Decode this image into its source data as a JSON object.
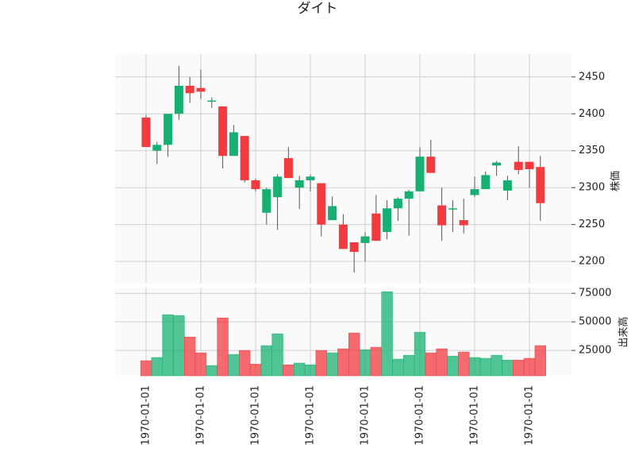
{
  "chart_data": {
    "type": "candlestick",
    "title": "ダイト",
    "ylabel": "株価",
    "categories": [
      "1970-01-01",
      null,
      null,
      null,
      null,
      "1970-01-01",
      null,
      null,
      null,
      null,
      "1970-01-01",
      null,
      null,
      null,
      null,
      "1970-01-01",
      null,
      null,
      null,
      null,
      "1970-01-01",
      null,
      null,
      null,
      null,
      "1970-01-01",
      null,
      null,
      null,
      null,
      "1970-01-01",
      null,
      null,
      null,
      null,
      "1970-01-01",
      null
    ],
    "open": [
      2395,
      2350,
      2358,
      2400,
      2438,
      2435,
      2418,
      2410,
      2343,
      2370,
      2310,
      2266,
      2287,
      2340,
      2300,
      2310,
      2306,
      2256,
      2250,
      2226,
      2225,
      2265,
      2240,
      2272,
      2285,
      2295,
      2342,
      2276,
      2272,
      2256,
      2290,
      2298,
      2330,
      2296,
      2335,
      2335,
      2328
    ],
    "high": [
      2398,
      2362,
      2400,
      2465,
      2450,
      2460,
      2422,
      2410,
      2385,
      2370,
      2312,
      2300,
      2318,
      2355,
      2316,
      2318,
      2306,
      2288,
      2264,
      2226,
      2240,
      2290,
      2283,
      2287,
      2297,
      2355,
      2365,
      2300,
      2283,
      2285,
      2315,
      2322,
      2336,
      2316,
      2356,
      2335,
      2343
    ],
    "low": [
      2355,
      2332,
      2342,
      2392,
      2415,
      2420,
      2408,
      2326,
      2343,
      2307,
      2295,
      2250,
      2243,
      2313,
      2271,
      2295,
      2234,
      2256,
      2217,
      2185,
      2200,
      2228,
      2230,
      2255,
      2235,
      2295,
      2320,
      2228,
      2240,
      2238,
      2287,
      2298,
      2316,
      2283,
      2318,
      2300,
      2255
    ],
    "close": [
      2355,
      2358,
      2400,
      2438,
      2428,
      2430,
      2418,
      2343,
      2375,
      2310,
      2298,
      2298,
      2315,
      2313,
      2310,
      2315,
      2250,
      2275,
      2217,
      2213,
      2234,
      2228,
      2272,
      2285,
      2295,
      2342,
      2320,
      2249,
      2272,
      2249,
      2298,
      2317,
      2334,
      2310,
      2324,
      2325,
      2279
    ],
    "ylim": [
      2170,
      2481
    ],
    "yticks": [
      2200,
      2250,
      2300,
      2350,
      2400,
      2450
    ],
    "grid": true,
    "up_color": "#18b072",
    "down_color": "#f23a3f",
    "volume": {
      "ylabel": "出来高",
      "values": [
        16000,
        18800,
        56300,
        55600,
        36800,
        22900,
        11800,
        53500,
        21500,
        25000,
        13000,
        29200,
        39600,
        12400,
        13900,
        12400,
        25000,
        22900,
        26400,
        40300,
        25700,
        27800,
        76400,
        17400,
        20800,
        41000,
        22900,
        26400,
        20100,
        23600,
        18800,
        18100,
        20800,
        16600,
        16600,
        18100,
        29200
      ],
      "ylim": [
        2800,
        80000
      ],
      "yticks": [
        25000,
        50000,
        75000
      ]
    }
  }
}
